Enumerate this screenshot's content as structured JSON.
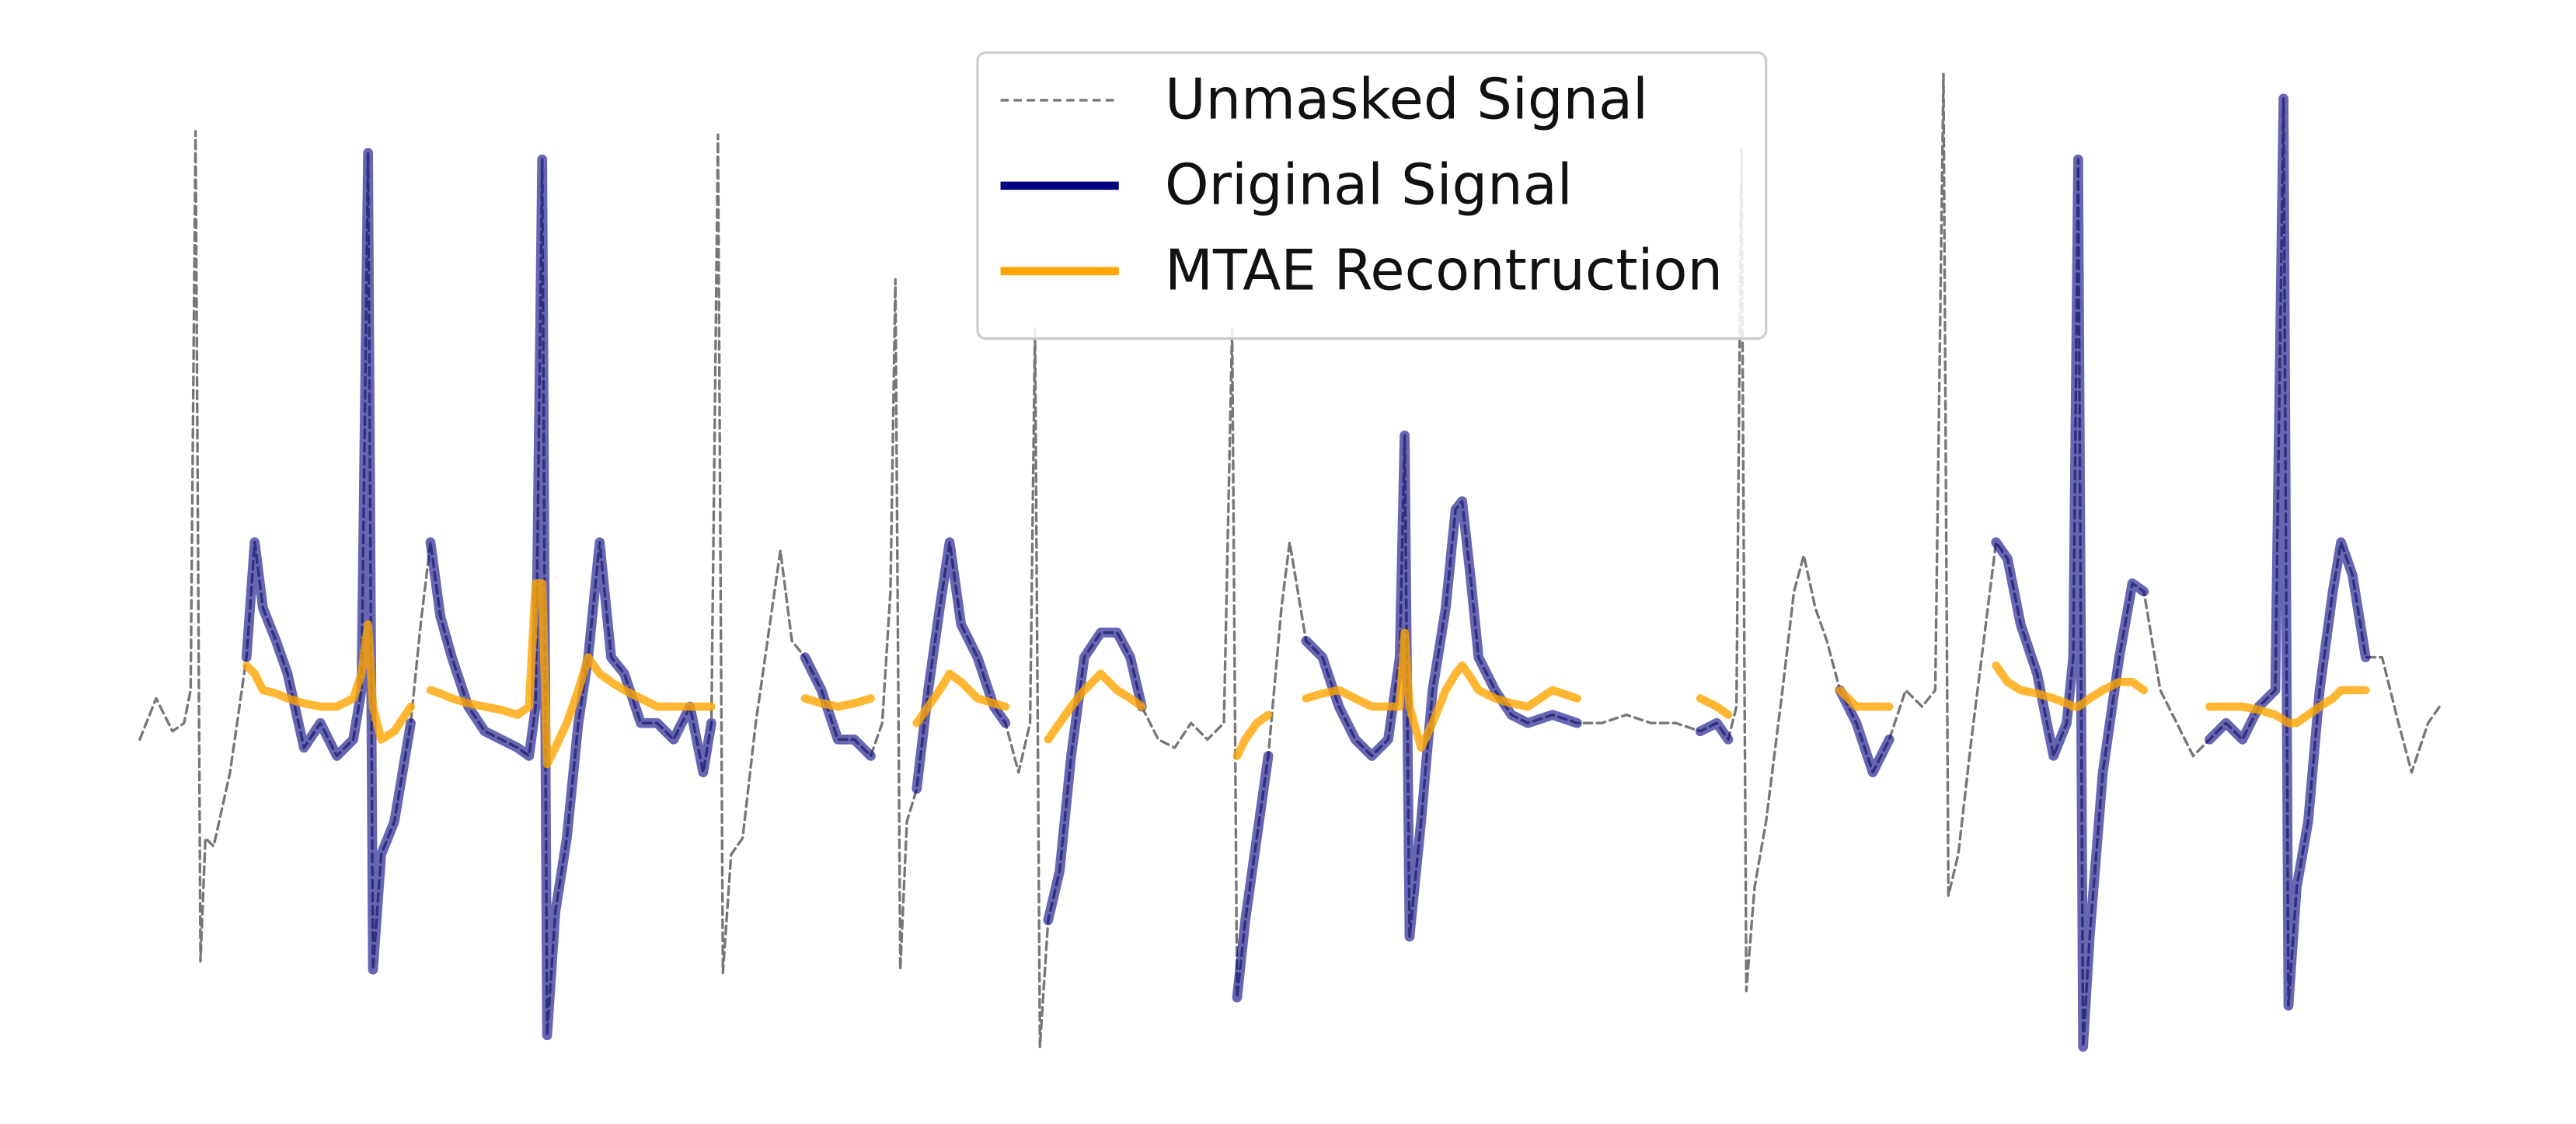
{
  "chart_data": {
    "type": "line",
    "legend": "upper center",
    "xlim": [
      0,
      1400
    ],
    "ylim": [
      -2.0,
      4.0
    ],
    "x": [
      0,
      10,
      15,
      20,
      27,
      31,
      34,
      37,
      40,
      45,
      55,
      65,
      70,
      75,
      83,
      90,
      100,
      110,
      120,
      130,
      135,
      139,
      142,
      147,
      155,
      165,
      171,
      177,
      183,
      190,
      200,
      210,
      220,
      230,
      237,
      241,
      245,
      248,
      253,
      260,
      267,
      273,
      280,
      287,
      295,
      305,
      315,
      325,
      335,
      343,
      348,
      352,
      355,
      360,
      367,
      375,
      385,
      390,
      397,
      405,
      415,
      425,
      435,
      445,
      452,
      457,
      460,
      463,
      467,
      473,
      480,
      487,
      493,
      500,
      510,
      520,
      527,
      535,
      542,
      545,
      548,
      553,
      560,
      567,
      575,
      585,
      595,
      603,
      610,
      620,
      630,
      640,
      650,
      660,
      665,
      668,
      673,
      680,
      687,
      695,
      700,
      710,
      720,
      730,
      740,
      750,
      760,
      767,
      770,
      773,
      780,
      787,
      795,
      801,
      805,
      810,
      815,
      825,
      835,
      845,
      860,
      875,
      890,
      905,
      920,
      935,
      950,
      960,
      967,
      972,
      975,
      978,
      983,
      990,
      1000,
      1007,
      1013,
      1020,
      1027,
      1035,
      1045,
      1055,
      1065,
      1075,
      1085,
      1093,
      1098,
      1101,
      1107,
      1115,
      1125,
      1130,
      1137,
      1145,
      1155,
      1165,
      1173,
      1177,
      1180,
      1183,
      1187,
      1195,
      1205,
      1213,
      1220,
      1230,
      1240,
      1250,
      1260,
      1270,
      1280,
      1290,
      1300,
      1305,
      1308,
      1313,
      1320,
      1327,
      1335,
      1340,
      1347,
      1355,
      1365,
      1375,
      1383,
      1393,
      1400
    ],
    "series": [
      {
        "name": "Unmasked Signal",
        "color": "#777777",
        "linestyle": "dashed",
        "values": [
          -0.1,
          0.15,
          0.05,
          -0.05,
          0,
          0.2,
          3.6,
          -1.45,
          -0.7,
          -0.75,
          -0.3,
          0.4,
          1.1,
          0.7,
          0.5,
          0.3,
          -0.15,
          0,
          -0.2,
          -0.1,
          0.2,
          3.47,
          -1.5,
          -0.8,
          -0.6,
          0,
          0.6,
          1.1,
          0.65,
          0.4,
          0.1,
          -0.05,
          -0.1,
          -0.15,
          -0.2,
          0.1,
          3.43,
          -1.9,
          -1.15,
          -0.7,
          0,
          0.4,
          1.1,
          0.4,
          0.3,
          0,
          0,
          -0.1,
          0.1,
          -0.3,
          0,
          3.58,
          -1.52,
          -0.8,
          -0.7,
          0,
          0.7,
          1.05,
          0.5,
          0.4,
          0.2,
          -0.1,
          -0.1,
          -0.2,
          0,
          0.8,
          2.7,
          -1.5,
          -0.6,
          -0.4,
          0.2,
          0.7,
          1.1,
          0.6,
          0.4,
          0.1,
          0,
          -0.3,
          0,
          2.4,
          -1.97,
          -1.2,
          -0.9,
          -0.2,
          0.4,
          0.55,
          0.55,
          0.4,
          0.1,
          -0.1,
          -0.15,
          0,
          -0.1,
          0,
          2.4,
          -1.67,
          -1.2,
          -0.7,
          -0.2,
          0.7,
          1.1,
          0.5,
          0.4,
          0.1,
          -0.1,
          -0.2,
          -0.1,
          0.4,
          1.75,
          -1.3,
          -0.6,
          0.2,
          0.7,
          1.3,
          1.35,
          0.9,
          0.4,
          0.2,
          0.05,
          0,
          0.05,
          0,
          0,
          0.05,
          0,
          0,
          -0.05,
          0,
          -0.1,
          0.1,
          3.5,
          -1.63,
          -1.0,
          -0.6,
          0.2,
          0.8,
          1.02,
          0.7,
          0.5,
          0.2,
          0,
          -0.3,
          -0.1,
          0.2,
          0.1,
          0.2,
          3.95,
          -1.05,
          -0.8,
          -0.1,
          0.7,
          1.1,
          1.0,
          0.6,
          0.3,
          -0.2,
          0,
          0.4,
          3.43,
          -1.97,
          -1.3,
          -0.3,
          0.4,
          0.85,
          0.8,
          0.2,
          0,
          -0.2,
          -0.1,
          0,
          -0.1,
          0.1,
          0.2,
          3.8,
          -1.72,
          -1.0,
          -0.6,
          0.2,
          0.8,
          1.1,
          0.9,
          0.4,
          0.4,
          0,
          -0.3,
          0,
          0.1
        ]
      },
      {
        "name": "Original Signal",
        "color": "#000080",
        "linestyle": "solid",
        "values": [
          null,
          null,
          null,
          null,
          null,
          null,
          null,
          null,
          null,
          null,
          null,
          0.4,
          1.1,
          0.7,
          0.5,
          0.3,
          -0.15,
          0,
          -0.2,
          -0.1,
          0.2,
          3.47,
          -1.5,
          -0.8,
          -0.6,
          0,
          null,
          1.1,
          0.65,
          0.4,
          0.1,
          -0.05,
          -0.1,
          -0.15,
          -0.2,
          0.1,
          3.43,
          -1.9,
          -1.15,
          -0.7,
          0,
          0.4,
          1.1,
          0.4,
          0.3,
          0,
          0,
          -0.1,
          0.1,
          -0.3,
          0,
          null,
          null,
          null,
          null,
          null,
          null,
          null,
          null,
          0.4,
          0.2,
          -0.1,
          -0.1,
          -0.2,
          null,
          null,
          null,
          null,
          null,
          -0.4,
          0.2,
          0.7,
          1.1,
          0.6,
          0.4,
          0.1,
          0,
          null,
          null,
          null,
          null,
          -1.2,
          -0.9,
          -0.2,
          0.4,
          0.55,
          0.55,
          0.4,
          0.1,
          null,
          null,
          null,
          null,
          null,
          null,
          -1.67,
          -1.2,
          -0.7,
          -0.2,
          null,
          null,
          0.5,
          0.4,
          0.1,
          -0.1,
          -0.2,
          -0.1,
          0.4,
          1.75,
          -1.3,
          -0.6,
          0.2,
          0.7,
          1.3,
          1.35,
          0.9,
          0.4,
          0.2,
          0.05,
          0,
          0.05,
          0,
          null,
          null,
          null,
          null,
          -0.05,
          0,
          -0.1,
          null,
          null,
          null,
          null,
          null,
          null,
          null,
          null,
          null,
          null,
          0.2,
          0,
          -0.3,
          -0.1,
          null,
          null,
          null,
          null,
          null,
          null,
          null,
          null,
          1.1,
          1.0,
          0.6,
          0.3,
          -0.2,
          0,
          0.4,
          3.43,
          -1.97,
          -1.3,
          -0.3,
          0.4,
          0.85,
          0.8,
          null,
          null,
          null,
          -0.1,
          0,
          -0.1,
          0.1,
          0.2,
          3.8,
          -1.72,
          -1.0,
          -0.6,
          0.2,
          0.8,
          1.1,
          0.9,
          0.4,
          null,
          null,
          null,
          null,
          null
        ]
      },
      {
        "name": "MTAE Recontruction",
        "color": "#ffa500",
        "linestyle": "solid",
        "values": [
          null,
          null,
          null,
          null,
          null,
          null,
          null,
          null,
          null,
          null,
          null,
          0.35,
          0.3,
          0.2,
          0.18,
          0.15,
          0.12,
          0.1,
          0.1,
          0.15,
          0.3,
          0.6,
          0.1,
          -0.1,
          -0.05,
          0.1,
          null,
          0.2,
          0.18,
          0.15,
          0.12,
          0.1,
          0.08,
          0.05,
          0.1,
          0.85,
          0.85,
          -0.25,
          -0.15,
          0,
          0.2,
          0.4,
          0.3,
          0.25,
          0.2,
          0.15,
          0.1,
          0.1,
          0.1,
          0.1,
          0.1,
          null,
          null,
          null,
          null,
          null,
          null,
          null,
          null,
          0.15,
          0.12,
          0.1,
          0.12,
          0.15,
          null,
          null,
          null,
          null,
          null,
          0,
          0.1,
          0.2,
          0.3,
          0.25,
          0.15,
          0.12,
          0.1,
          null,
          null,
          null,
          null,
          -0.1,
          0,
          0.1,
          0.2,
          0.3,
          0.2,
          0.15,
          0.1,
          null,
          null,
          null,
          null,
          null,
          null,
          -0.2,
          -0.1,
          0,
          0.05,
          null,
          null,
          0.15,
          0.18,
          0.2,
          0.15,
          0.1,
          0.1,
          0.1,
          0.55,
          0.1,
          -0.15,
          0,
          0.2,
          0.3,
          0.35,
          0.28,
          0.2,
          0.15,
          0.12,
          0.1,
          0.2,
          0.15,
          null,
          null,
          null,
          null,
          0.15,
          0.1,
          0.05,
          null,
          null,
          null,
          null,
          null,
          null,
          null,
          null,
          null,
          null,
          0.2,
          0.1,
          0.1,
          0.1,
          null,
          null,
          null,
          null,
          null,
          null,
          null,
          null,
          0.35,
          0.25,
          0.2,
          0.18,
          0.15,
          0.12,
          0.1,
          0.1,
          0.12,
          0.15,
          0.2,
          0.25,
          0.25,
          0.2,
          null,
          null,
          null,
          0.1,
          0.1,
          0.1,
          0.08,
          0.05,
          0.02,
          0,
          0,
          0.05,
          0.1,
          0.15,
          0.2,
          0.2,
          0.2,
          null,
          null,
          null,
          null,
          null
        ]
      }
    ]
  }
}
